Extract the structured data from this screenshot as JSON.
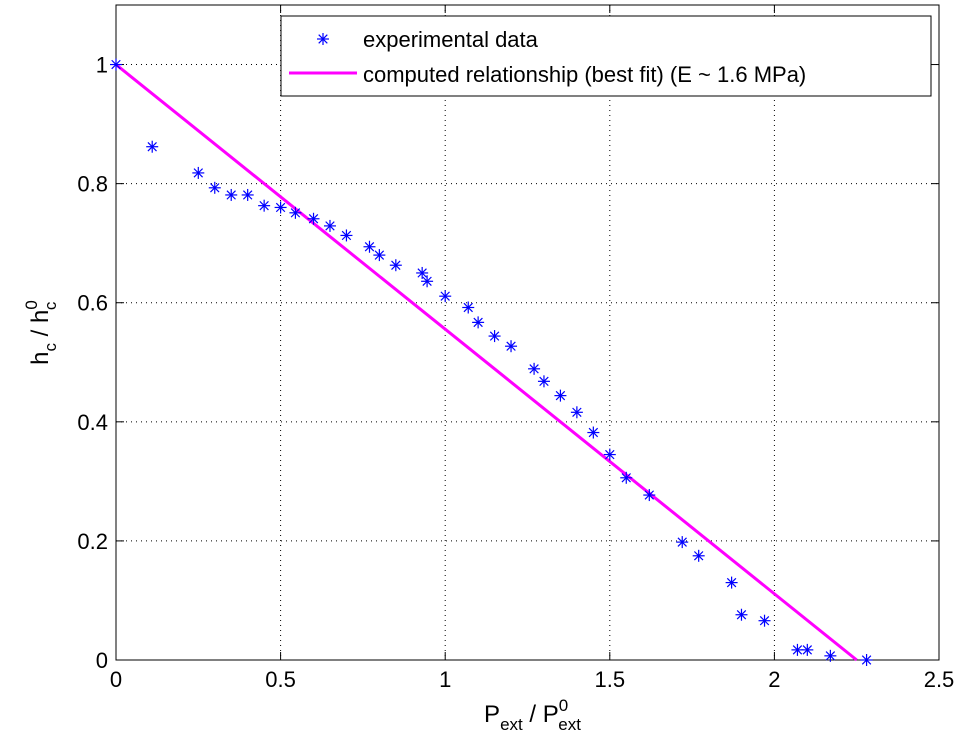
{
  "chart_data": {
    "type": "scatter",
    "xlabel": {
      "main": "P",
      "sub": "ext",
      "sep": " / ",
      "main2": "P",
      "sub2": "ext",
      "sup2": "0"
    },
    "ylabel": {
      "main": "h",
      "sub": "c",
      "sep": " / ",
      "main2": "h",
      "sub2": "c",
      "sup2": "0"
    },
    "xlim": [
      0,
      2.5
    ],
    "ylim": [
      0,
      1.1
    ],
    "xticks": [
      0,
      0.5,
      1,
      1.5,
      2,
      2.5
    ],
    "xtick_labels": [
      "0",
      "0.5",
      "1",
      "1.5",
      "2",
      "2.5"
    ],
    "yticks": [
      0,
      0.2,
      0.4,
      0.6,
      0.8,
      1
    ],
    "ytick_labels": [
      "0",
      "0.2",
      "0.4",
      "0.6",
      "0.8",
      "1"
    ],
    "grid": true,
    "legend_position": "top-right",
    "series": [
      {
        "name": "experimental data",
        "kind": "markers",
        "marker": "*",
        "color": "#0000ff",
        "points": [
          [
            0,
            1
          ],
          [
            0.11,
            0.862
          ],
          [
            0.25,
            0.818
          ],
          [
            0.3,
            0.793
          ],
          [
            0.35,
            0.781
          ],
          [
            0.4,
            0.781
          ],
          [
            0.45,
            0.763
          ],
          [
            0.5,
            0.76
          ],
          [
            0.545,
            0.751
          ],
          [
            0.6,
            0.741
          ],
          [
            0.65,
            0.729
          ],
          [
            0.7,
            0.713
          ],
          [
            0.77,
            0.694
          ],
          [
            0.8,
            0.68
          ],
          [
            0.85,
            0.663
          ],
          [
            0.93,
            0.65
          ],
          [
            0.945,
            0.636
          ],
          [
            1.0,
            0.611
          ],
          [
            1.07,
            0.592
          ],
          [
            1.1,
            0.567
          ],
          [
            1.15,
            0.544
          ],
          [
            1.2,
            0.527
          ],
          [
            1.27,
            0.489
          ],
          [
            1.3,
            0.468
          ],
          [
            1.35,
            0.444
          ],
          [
            1.4,
            0.416
          ],
          [
            1.45,
            0.382
          ],
          [
            1.5,
            0.345
          ],
          [
            1.55,
            0.306
          ],
          [
            1.62,
            0.277
          ],
          [
            1.72,
            0.198
          ],
          [
            1.77,
            0.175
          ],
          [
            1.87,
            0.13
          ],
          [
            1.9,
            0.076
          ],
          [
            1.97,
            0.066
          ],
          [
            2.07,
            0.017
          ],
          [
            2.1,
            0.017
          ],
          [
            2.17,
            0.007
          ],
          [
            2.28,
            0.0
          ]
        ]
      },
      {
        "name": "computed relationship (best fit) (E ~ 1.6 MPa)",
        "kind": "line",
        "color": "#ff00ff",
        "points": [
          [
            0,
            1
          ],
          [
            2.25,
            0
          ]
        ]
      }
    ]
  }
}
